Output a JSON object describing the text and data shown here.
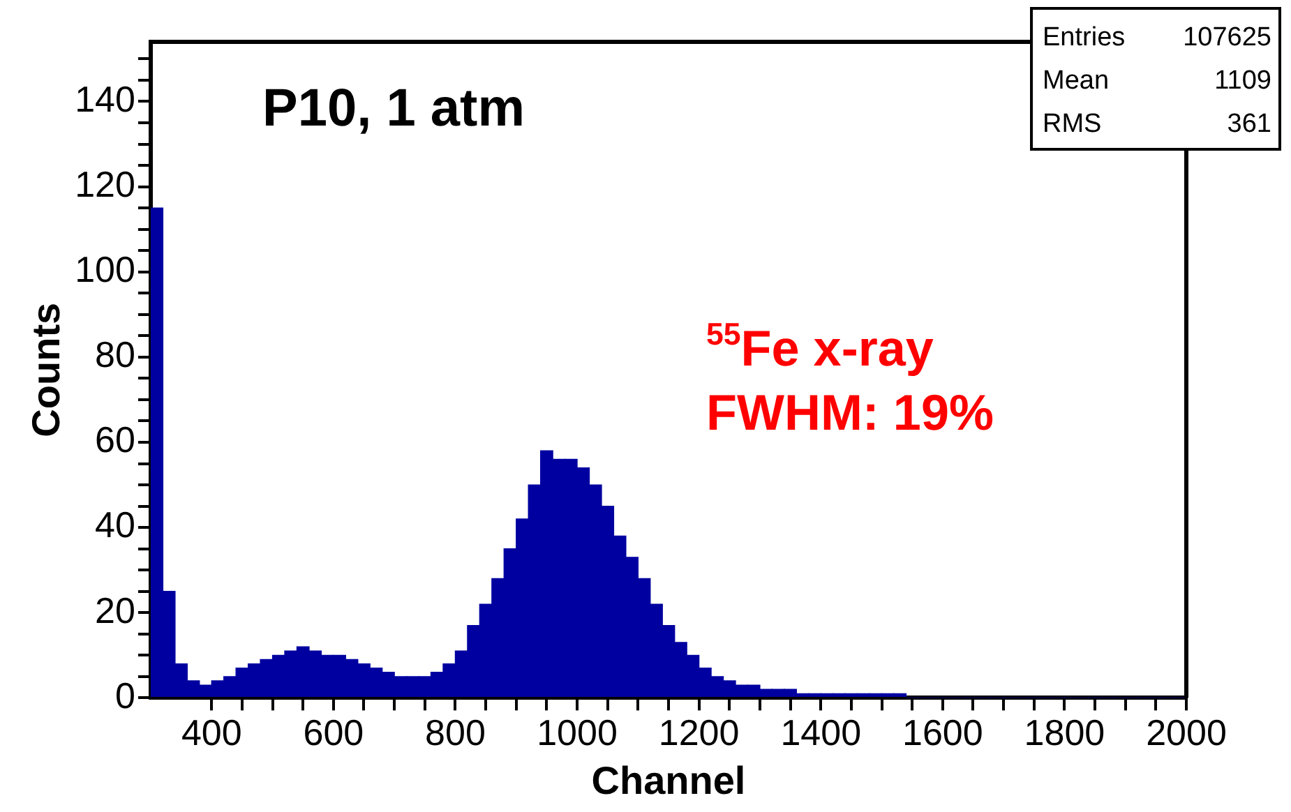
{
  "chart_data": {
    "type": "histogram",
    "xlabel": "Channel",
    "ylabel": "Counts",
    "annotations": [
      "P10, 1 atm",
      "$^{55}$Fe x-ray",
      "FWHM: 19%",
      "Entries",
      "107625",
      "Mean",
      "1109",
      "RMS",
      "361"
    ],
    "bins": [
      300,
      320,
      340,
      360,
      380,
      400,
      420,
      440,
      460,
      480,
      500,
      520,
      540,
      560,
      580,
      600,
      620,
      640,
      660,
      680,
      700,
      720,
      740,
      760,
      780,
      800,
      820,
      840,
      860,
      880,
      900,
      920,
      940,
      960,
      980,
      1000,
      1020,
      1040,
      1060,
      1080,
      1100,
      1120,
      1140,
      1160,
      1180,
      1200,
      1220,
      1240,
      1260,
      1280,
      1300,
      1320,
      1340,
      1360,
      1380,
      1400,
      1420,
      1440,
      1460,
      1480,
      1500,
      1520,
      1540,
      1560,
      1580,
      1600,
      1620,
      1640,
      1660,
      1680,
      1700,
      1720,
      1740,
      1760,
      1780,
      1800,
      1820,
      1840,
      1860,
      1880,
      1900,
      1920,
      1940,
      1960,
      1980,
      2000
    ],
    "values": [
      115,
      25,
      8,
      4,
      3,
      4,
      5,
      7,
      8,
      9,
      10,
      11,
      12,
      11,
      10,
      10,
      9,
      8,
      7,
      6,
      5,
      5,
      5,
      6,
      8,
      11,
      17,
      22,
      28,
      35,
      42,
      50,
      58,
      56,
      56,
      54,
      50,
      45,
      38,
      33,
      28,
      22,
      17,
      13,
      10,
      7,
      5,
      4,
      3,
      3,
      2,
      2,
      2,
      1,
      1,
      1,
      1,
      1,
      1,
      1,
      1,
      1,
      0,
      0,
      0,
      0,
      0,
      0,
      0,
      0,
      0,
      0,
      0,
      0,
      0,
      0,
      0,
      0,
      0,
      0,
      0,
      0,
      0,
      0,
      0
    ],
    "color": "#0000a0",
    "xlim": [
      300,
      2000
    ],
    "ylim": [
      0,
      154
    ],
    "xticks": [
      400,
      {
        "value": 450,
        "label": null
      },
      {
        "value": 500,
        "label": null
      },
      {
        "value": 550,
        "label": null
      },
      600,
      {
        "value": 650,
        "label": null
      },
      {
        "value": 700,
        "label": null
      },
      {
        "value": 750,
        "label": null
      },
      800,
      {
        "value": 850,
        "label": null
      },
      {
        "value": 900,
        "label": null
      },
      {
        "value": 950,
        "label": null
      },
      1000,
      {
        "value": 1050,
        "label": null
      },
      {
        "value": 1100,
        "label": null
      },
      {
        "value": 1150,
        "label": null
      },
      1200,
      {
        "value": 1250,
        "label": null
      },
      {
        "value": 1300,
        "label": null
      },
      {
        "value": 1350,
        "label": null
      },
      1400,
      {
        "value": 1450,
        "label": null
      },
      {
        "value": 1500,
        "label": null
      },
      {
        "value": 1550,
        "label": null
      },
      1600,
      {
        "value": 1650,
        "label": null
      },
      {
        "value": 1700,
        "label": null
      },
      {
        "value": 1750,
        "label": null
      },
      1800,
      {
        "value": 1850,
        "label": null
      },
      {
        "value": 1900,
        "label": null
      },
      {
        "value": 1950,
        "label": null
      },
      2000
    ],
    "yticks": [
      0,
      {
        "value": 5,
        "label": null
      },
      {
        "value": 10,
        "label": null
      },
      {
        "value": 15,
        "label": null
      },
      20,
      {
        "value": 25,
        "label": null
      },
      {
        "value": 30,
        "label": null
      },
      {
        "value": 35,
        "label": null
      },
      40,
      {
        "value": 45,
        "label": null
      },
      {
        "value": 50,
        "label": null
      },
      {
        "value": 55,
        "label": null
      },
      60,
      {
        "value": 65,
        "label": null
      },
      {
        "value": 70,
        "label": null
      },
      {
        "value": 75,
        "label": null
      },
      80,
      {
        "value": 85,
        "label": null
      },
      {
        "value": 90,
        "label": null
      },
      {
        "value": 95,
        "label": null
      },
      100,
      {
        "value": 105,
        "label": null
      },
      {
        "value": 110,
        "label": null
      },
      {
        "value": 115,
        "label": null
      },
      120,
      {
        "value": 125,
        "label": null
      },
      {
        "value": 130,
        "label": null
      },
      {
        "value": 135,
        "label": null
      },
      140,
      {
        "value": 145,
        "label": null
      },
      {
        "value": 150,
        "label": null
      }
    ],
    "grid": false,
    "legend": false
  }
}
